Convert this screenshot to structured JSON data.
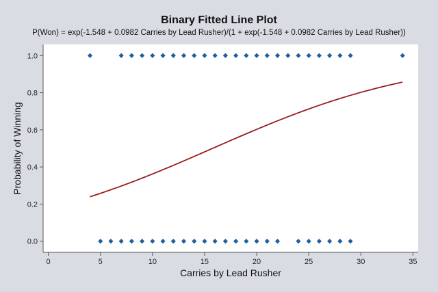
{
  "chart_data": {
    "type": "scatter",
    "title": "Binary Fitted Line Plot",
    "subtitle": "P(Won) = exp(-1.548 + 0.0982 Carries by Lead Rusher)/(1 + exp(-1.548 + 0.0982 Carries by Lead Rusher))",
    "xlabel": "Carries by Lead Rusher",
    "ylabel": "Probability of Winning",
    "xlim": [
      -0.5,
      35.5
    ],
    "ylim": [
      -0.06,
      1.06
    ],
    "xticks": [
      0,
      5,
      10,
      15,
      20,
      25,
      30,
      35
    ],
    "xtick_labels": [
      "0",
      "5",
      "10",
      "15",
      "20",
      "25",
      "30",
      "35"
    ],
    "yticks": [
      0.0,
      0.2,
      0.4,
      0.6,
      0.8,
      1.0
    ],
    "ytick_labels": [
      "0.0",
      "0.2",
      "0.4",
      "0.6",
      "0.8",
      "1.0"
    ],
    "grid": false,
    "series": [
      {
        "kind": "points",
        "color": "#1f5f9e",
        "x": [
          4,
          7,
          8,
          9,
          10,
          11,
          12,
          13,
          14,
          15,
          16,
          17,
          18,
          19,
          20,
          21,
          22,
          23,
          24,
          25,
          26,
          27,
          28,
          29,
          34,
          5,
          6,
          7,
          8,
          9,
          10,
          11,
          12,
          13,
          14,
          15,
          16,
          17,
          18,
          19,
          20,
          21,
          22,
          24,
          25,
          26,
          27,
          28,
          29
        ],
        "y": [
          1,
          1,
          1,
          1,
          1,
          1,
          1,
          1,
          1,
          1,
          1,
          1,
          1,
          1,
          1,
          1,
          1,
          1,
          1,
          1,
          1,
          1,
          1,
          1,
          1,
          0,
          0,
          0,
          0,
          0,
          0,
          0,
          0,
          0,
          0,
          0,
          0,
          0,
          0,
          0,
          0,
          0,
          0,
          0,
          0,
          0,
          0,
          0,
          0
        ]
      },
      {
        "kind": "fitted-line",
        "color": "#9a1c1c",
        "intercept": -1.548,
        "slope": 0.0982,
        "x_range": [
          4,
          34
        ]
      }
    ]
  }
}
